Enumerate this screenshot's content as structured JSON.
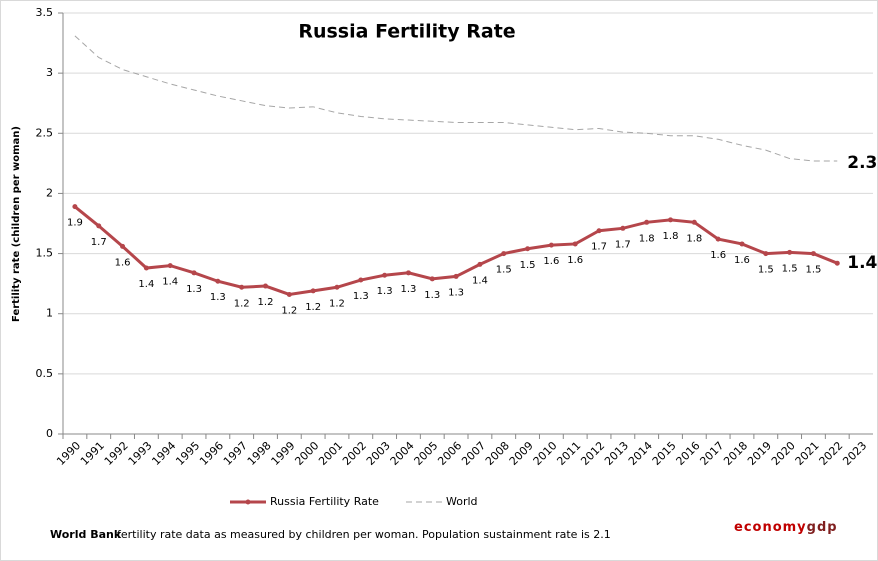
{
  "chart_data": {
    "type": "line",
    "title": "Russia Fertility Rate",
    "y_label": "Fertility rate (children per woman)",
    "categories": [
      "1990",
      "1991",
      "1992",
      "1993",
      "1994",
      "1995",
      "1996",
      "1997",
      "1998",
      "1999",
      "2000",
      "2001",
      "2002",
      "2003",
      "2004",
      "2005",
      "2006",
      "2007",
      "2008",
      "2009",
      "2010",
      "2011",
      "2012",
      "2013",
      "2014",
      "2015",
      "2016",
      "2017",
      "2018",
      "2019",
      "2020",
      "2021",
      "2022",
      "2023"
    ],
    "series": [
      {
        "name": "Russia Fertility Rate",
        "color": "#b5464b",
        "values": [
          1.89,
          1.73,
          1.56,
          1.38,
          1.4,
          1.34,
          1.27,
          1.22,
          1.23,
          1.16,
          1.19,
          1.22,
          1.28,
          1.32,
          1.34,
          1.29,
          1.31,
          1.41,
          1.5,
          1.54,
          1.57,
          1.58,
          1.69,
          1.71,
          1.76,
          1.78,
          1.76,
          1.62,
          1.58,
          1.5,
          1.51,
          1.5,
          1.42,
          null
        ],
        "value_labels": [
          "1.9",
          "1.7",
          "1.6",
          "1.4",
          "1.4",
          "1.3",
          "1.3",
          "1.2",
          "1.2",
          "1.2",
          "1.2",
          "1.2",
          "1.3",
          "1.3",
          "1.3",
          "1.3",
          "1.3",
          "1.4",
          "1.5",
          "1.5",
          "1.6",
          "1.6",
          "1.7",
          "1.7",
          "1.8",
          "1.8",
          "1.8",
          "1.6",
          "1.6",
          "1.5",
          "1.5",
          "1.5",
          "1.4",
          null
        ]
      },
      {
        "name": "World",
        "color": "#a6a6a6",
        "dashed": true,
        "values": [
          3.31,
          3.13,
          3.03,
          2.97,
          2.91,
          2.86,
          2.81,
          2.77,
          2.73,
          2.71,
          2.72,
          2.67,
          2.64,
          2.62,
          2.61,
          2.6,
          2.59,
          2.59,
          2.59,
          2.57,
          2.55,
          2.53,
          2.54,
          2.51,
          2.5,
          2.48,
          2.48,
          2.45,
          2.4,
          2.36,
          2.29,
          2.27,
          2.27,
          null
        ],
        "value_labels": [
          null,
          null,
          null,
          null,
          null,
          null,
          null,
          null,
          null,
          null,
          null,
          null,
          null,
          null,
          null,
          null,
          null,
          null,
          null,
          null,
          null,
          null,
          null,
          null,
          null,
          null,
          null,
          null,
          null,
          null,
          null,
          null,
          "2.3",
          null
        ]
      }
    ],
    "ylim": [
      0,
      3.5
    ],
    "yticks": [
      0,
      0.5,
      1,
      1.5,
      2,
      2.5,
      3,
      3.5
    ],
    "grid": true,
    "legend": "bottom",
    "source_bold": "World Bank",
    "source_text": "fertility rate data as measured by children per woman.  Population sustainment rate is 2.1",
    "brand": [
      "economy",
      "gdp"
    ]
  }
}
